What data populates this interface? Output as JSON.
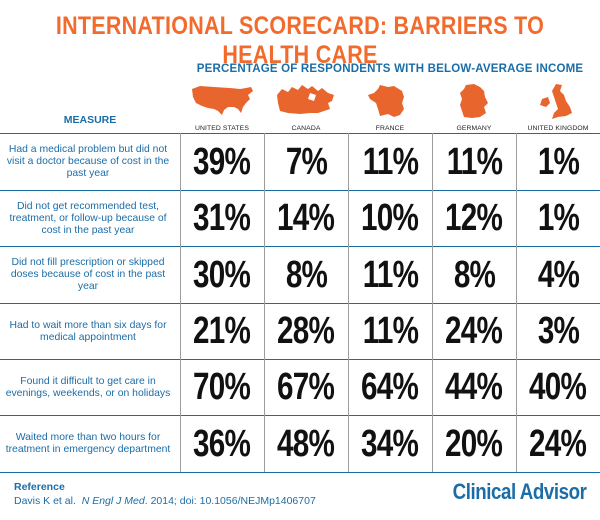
{
  "title": "INTERNATIONAL SCORECARD:  BARRIERS TO HEALTH CARE",
  "subtitle": "PERCENTAGE OF RESPONDENTS WITH BELOW-AVERAGE INCOME",
  "measure_header": "MEASURE",
  "countries": [
    {
      "name": "UNITED STATES",
      "icon": "usa-map-icon"
    },
    {
      "name": "CANADA",
      "icon": "canada-map-icon"
    },
    {
      "name": "FRANCE",
      "icon": "france-map-icon"
    },
    {
      "name": "GERMANY",
      "icon": "germany-map-icon"
    },
    {
      "name": "UNITED KINGDOM",
      "icon": "uk-map-icon"
    }
  ],
  "colors": {
    "title": "#f26b2c",
    "map": "#e8662e",
    "text_blue": "#1b6da8",
    "values": "#111111"
  },
  "chart_data": {
    "type": "table",
    "title": "INTERNATIONAL SCORECARD:  BARRIERS TO HEALTH CARE",
    "subtitle": "PERCENTAGE OF RESPONDENTS WITH BELOW-AVERAGE INCOME",
    "columns": [
      "UNITED STATES",
      "CANADA",
      "FRANCE",
      "GERMANY",
      "UNITED KINGDOM"
    ],
    "rows": [
      {
        "measure": "Had a medical problem but did not visit a doctor because of cost in the past year",
        "values": [
          "39%",
          "7%",
          "11%",
          "11%",
          "1%"
        ]
      },
      {
        "measure": "Did not get recommended test, treatment, or follow-up because of cost in the past year",
        "values": [
          "31%",
          "14%",
          "10%",
          "12%",
          "1%"
        ]
      },
      {
        "measure": "Did not fill prescription or skipped doses because of cost in the past year",
        "values": [
          "30%",
          "8%",
          "11%",
          "8%",
          "4%"
        ]
      },
      {
        "measure": "Had to wait more than six days for medical appointment",
        "values": [
          "21%",
          "28%",
          "11%",
          "24%",
          "3%"
        ]
      },
      {
        "measure": "Found it difficult to get care in evenings, weekends, or on holidays",
        "values": [
          "70%",
          "67%",
          "64%",
          "44%",
          "40%"
        ]
      },
      {
        "measure": "Waited more than two hours for treatment in emergency department",
        "values": [
          "36%",
          "48%",
          "34%",
          "20%",
          "24%"
        ]
      }
    ]
  },
  "reference": {
    "heading": "Reference",
    "authors": "Davis K et al.",
    "journal": "N Engl J Med",
    "details": ". 2014; doi: 10.1056/NEJMp1406707"
  },
  "brand": "Clinical Advisor"
}
